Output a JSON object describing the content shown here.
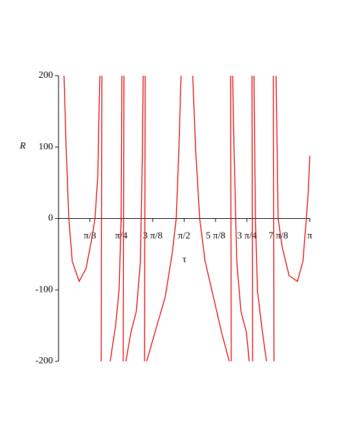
{
  "chart_data": {
    "type": "line",
    "xlabel": "τ",
    "ylabel": "R",
    "xlim": [
      0,
      3.1416
    ],
    "ylim": [
      -200,
      200
    ],
    "xticks": [
      {
        "value": 0.3927,
        "label": "π/8"
      },
      {
        "value": 0.7854,
        "label": "π/4"
      },
      {
        "value": 1.1781,
        "label": "3 π/8"
      },
      {
        "value": 1.5708,
        "label": "π/2"
      },
      {
        "value": 1.9635,
        "label": "5 π/8"
      },
      {
        "value": 2.3562,
        "label": "3 π/4"
      },
      {
        "value": 2.7489,
        "label": "7 π/8"
      },
      {
        "value": 3.1416,
        "label": "π"
      }
    ],
    "yticks": [
      -200,
      -100,
      0,
      100,
      200
    ],
    "series": [
      {
        "color": "#e00000",
        "x": [
          0.069,
          0.095,
          0.129,
          0.172,
          0.258,
          0.344,
          0.413,
          0.456,
          0.491,
          0.516,
          null,
          0.534,
          0.542,
          null,
          0.646,
          0.714,
          0.757,
          0.783,
          0.792,
          null,
          0.809,
          0.818,
          null,
          0.843,
          0.904,
          0.973,
          1.024,
          1.05,
          1.059,
          null,
          1.076,
          1.084,
          null,
          1.102,
          1.205,
          1.334,
          1.42,
          1.472,
          1.506,
          1.532,
          null,
          1.678,
          1.713,
          1.765,
          1.833,
          1.937,
          2.04,
          2.135,
          null,
          2.152,
          2.16,
          null,
          2.177,
          2.194,
          2.229,
          2.281,
          2.35,
          2.384,
          null,
          2.419,
          2.427,
          null,
          2.444,
          2.462,
          2.487,
          2.539,
          2.6,
          null,
          2.686,
          2.694,
          null,
          2.72,
          2.746,
          2.797,
          2.883,
          2.987,
          3.056,
          3.099,
          3.124,
          3.142
        ],
        "values": [
          200,
          100,
          0,
          -60,
          -88,
          -70,
          -30,
          0,
          60,
          200,
          null,
          -200,
          200,
          null,
          -200,
          -150,
          -100,
          0,
          200,
          null,
          -200,
          200,
          null,
          -200,
          -160,
          -130,
          -60,
          100,
          200,
          null,
          -200,
          200,
          null,
          -200,
          -160,
          -110,
          -50,
          0,
          100,
          200,
          null,
          200,
          100,
          0,
          -60,
          -110,
          -160,
          -200,
          null,
          200,
          -200,
          null,
          200,
          100,
          -60,
          -130,
          -160,
          -200,
          null,
          200,
          -200,
          null,
          200,
          0,
          -100,
          -150,
          -200,
          null,
          200,
          -200,
          null,
          200,
          0,
          -40,
          -80,
          -88,
          -60,
          0,
          40,
          88
        ]
      }
    ]
  }
}
